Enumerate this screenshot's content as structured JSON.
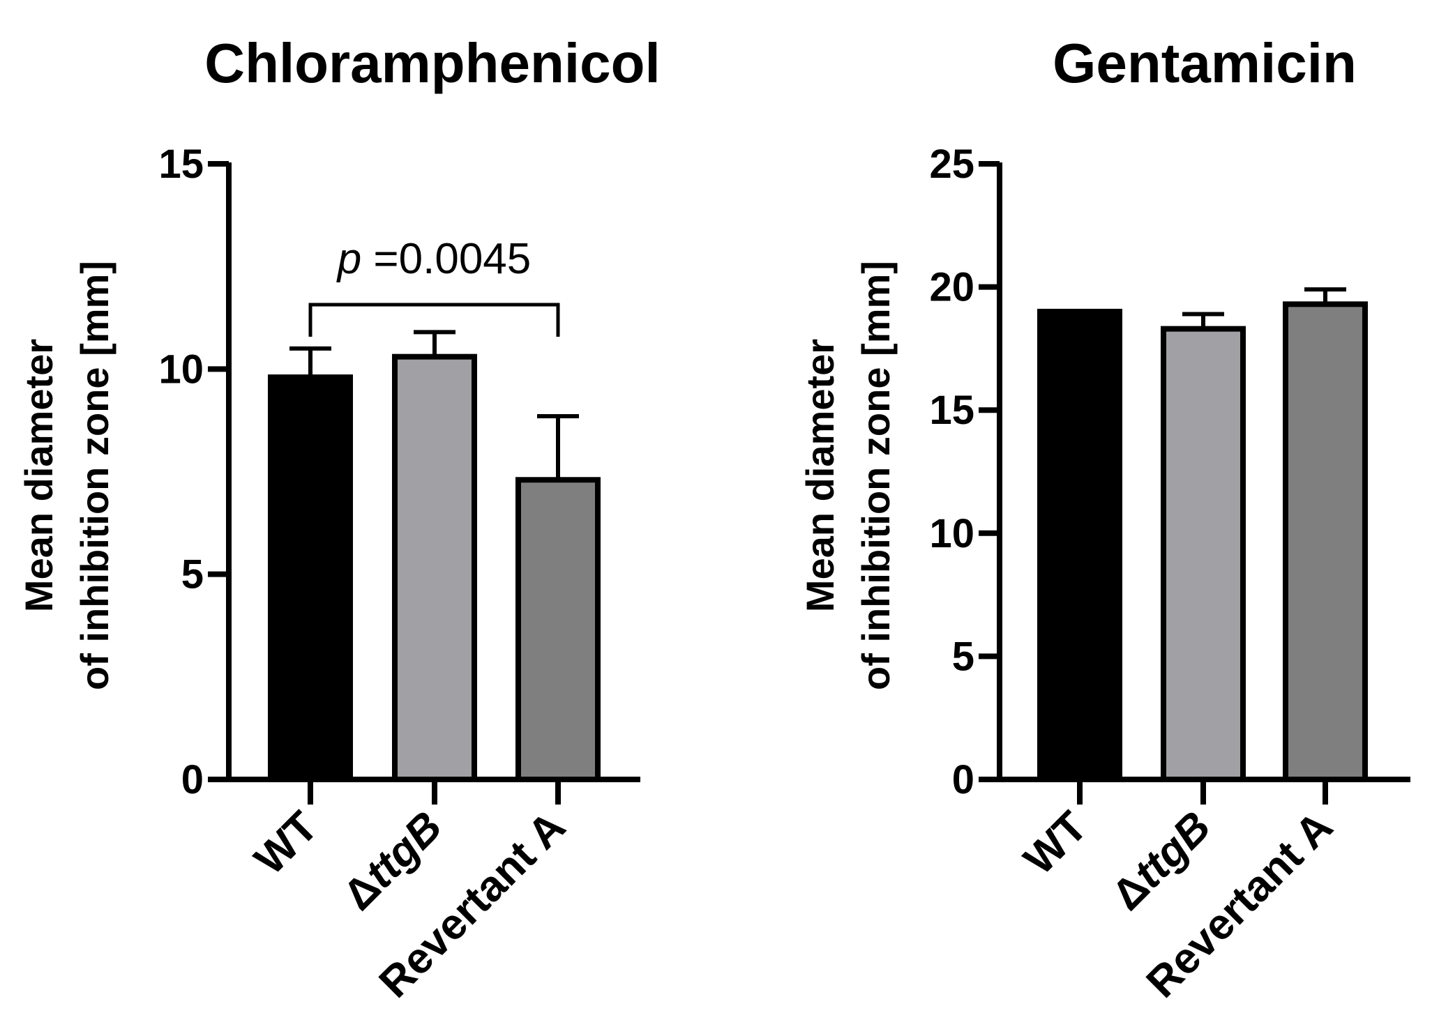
{
  "chart_data": [
    {
      "type": "bar",
      "title": "Chloramphenicol",
      "ylabel_line1": "Mean diameter",
      "ylabel_line2": "of inhibition zone [mm]",
      "xlabel": "",
      "ylim": [
        0,
        15
      ],
      "yticks": [
        0,
        5,
        10,
        15
      ],
      "categories": [
        {
          "prefix": "",
          "italic": "",
          "suffix": "WT"
        },
        {
          "prefix": "Δ",
          "italic": "ttgB",
          "suffix": ""
        },
        {
          "prefix": "",
          "italic": "",
          "suffix": "Revertant A"
        }
      ],
      "values": [
        9.8,
        10.3,
        7.3
      ],
      "errors": [
        0.7,
        0.6,
        1.55
      ],
      "colors": [
        "#000000",
        "#a0a0a5",
        "#7f7f7f"
      ],
      "annotation": {
        "from": 0,
        "to": 2,
        "p_label": "p",
        "value_label": " =0.0045"
      }
    },
    {
      "type": "bar",
      "title": "Gentamicin",
      "ylabel_line1": "Mean diameter",
      "ylabel_line2": "of inhibition zone [mm]",
      "xlabel": "",
      "ylim": [
        0,
        25
      ],
      "yticks": [
        0,
        5,
        10,
        15,
        20,
        25
      ],
      "categories": [
        {
          "prefix": "",
          "italic": "",
          "suffix": "WT"
        },
        {
          "prefix": "Δ",
          "italic": "ttgB",
          "suffix": ""
        },
        {
          "prefix": "",
          "italic": "",
          "suffix": "Revertant A"
        }
      ],
      "values": [
        19.0,
        18.3,
        19.3
      ],
      "errors": [
        0.0,
        0.6,
        0.6
      ],
      "colors": [
        "#000000",
        "#a0a0a5",
        "#7f7f7f"
      ],
      "annotation": null
    }
  ]
}
